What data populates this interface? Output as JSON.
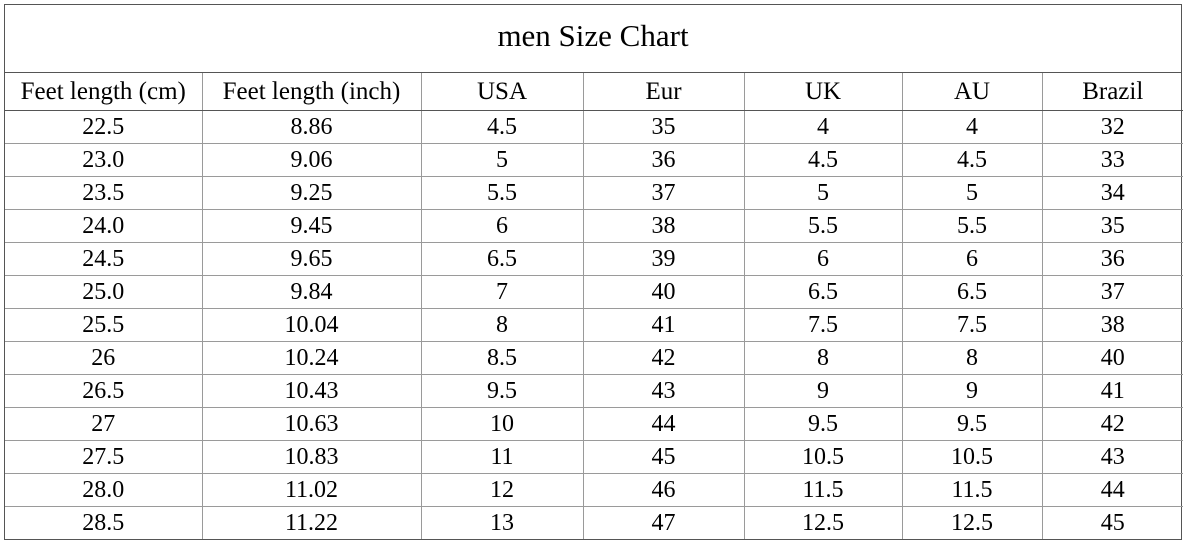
{
  "title": "men Size Chart",
  "headers": [
    "Feet length (cm)",
    "Feet length (inch)",
    "USA",
    "Eur",
    "UK",
    "AU",
    "Brazil"
  ],
  "rows": [
    [
      "22.5",
      "8.86",
      "4.5",
      "35",
      "4",
      "4",
      "32"
    ],
    [
      "23.0",
      "9.06",
      "5",
      "36",
      "4.5",
      "4.5",
      "33"
    ],
    [
      "23.5",
      "9.25",
      "5.5",
      "37",
      "5",
      "5",
      "34"
    ],
    [
      "24.0",
      "9.45",
      "6",
      "38",
      "5.5",
      "5.5",
      "35"
    ],
    [
      "24.5",
      "9.65",
      "6.5",
      "39",
      "6",
      "6",
      "36"
    ],
    [
      "25.0",
      "9.84",
      "7",
      "40",
      "6.5",
      "6.5",
      "37"
    ],
    [
      "25.5",
      "10.04",
      "8",
      "41",
      "7.5",
      "7.5",
      "38"
    ],
    [
      "26",
      "10.24",
      "8.5",
      "42",
      "8",
      "8",
      "40"
    ],
    [
      "26.5",
      "10.43",
      "9.5",
      "43",
      "9",
      "9",
      "41"
    ],
    [
      "27",
      "10.63",
      "10",
      "44",
      "9.5",
      "9.5",
      "42"
    ],
    [
      "27.5",
      "10.83",
      "11",
      "45",
      "10.5",
      "10.5",
      "43"
    ],
    [
      "28.0",
      "11.02",
      "12",
      "46",
      "11.5",
      "11.5",
      "44"
    ],
    [
      "28.5",
      "11.22",
      "13",
      "47",
      "12.5",
      "12.5",
      "45"
    ]
  ]
}
